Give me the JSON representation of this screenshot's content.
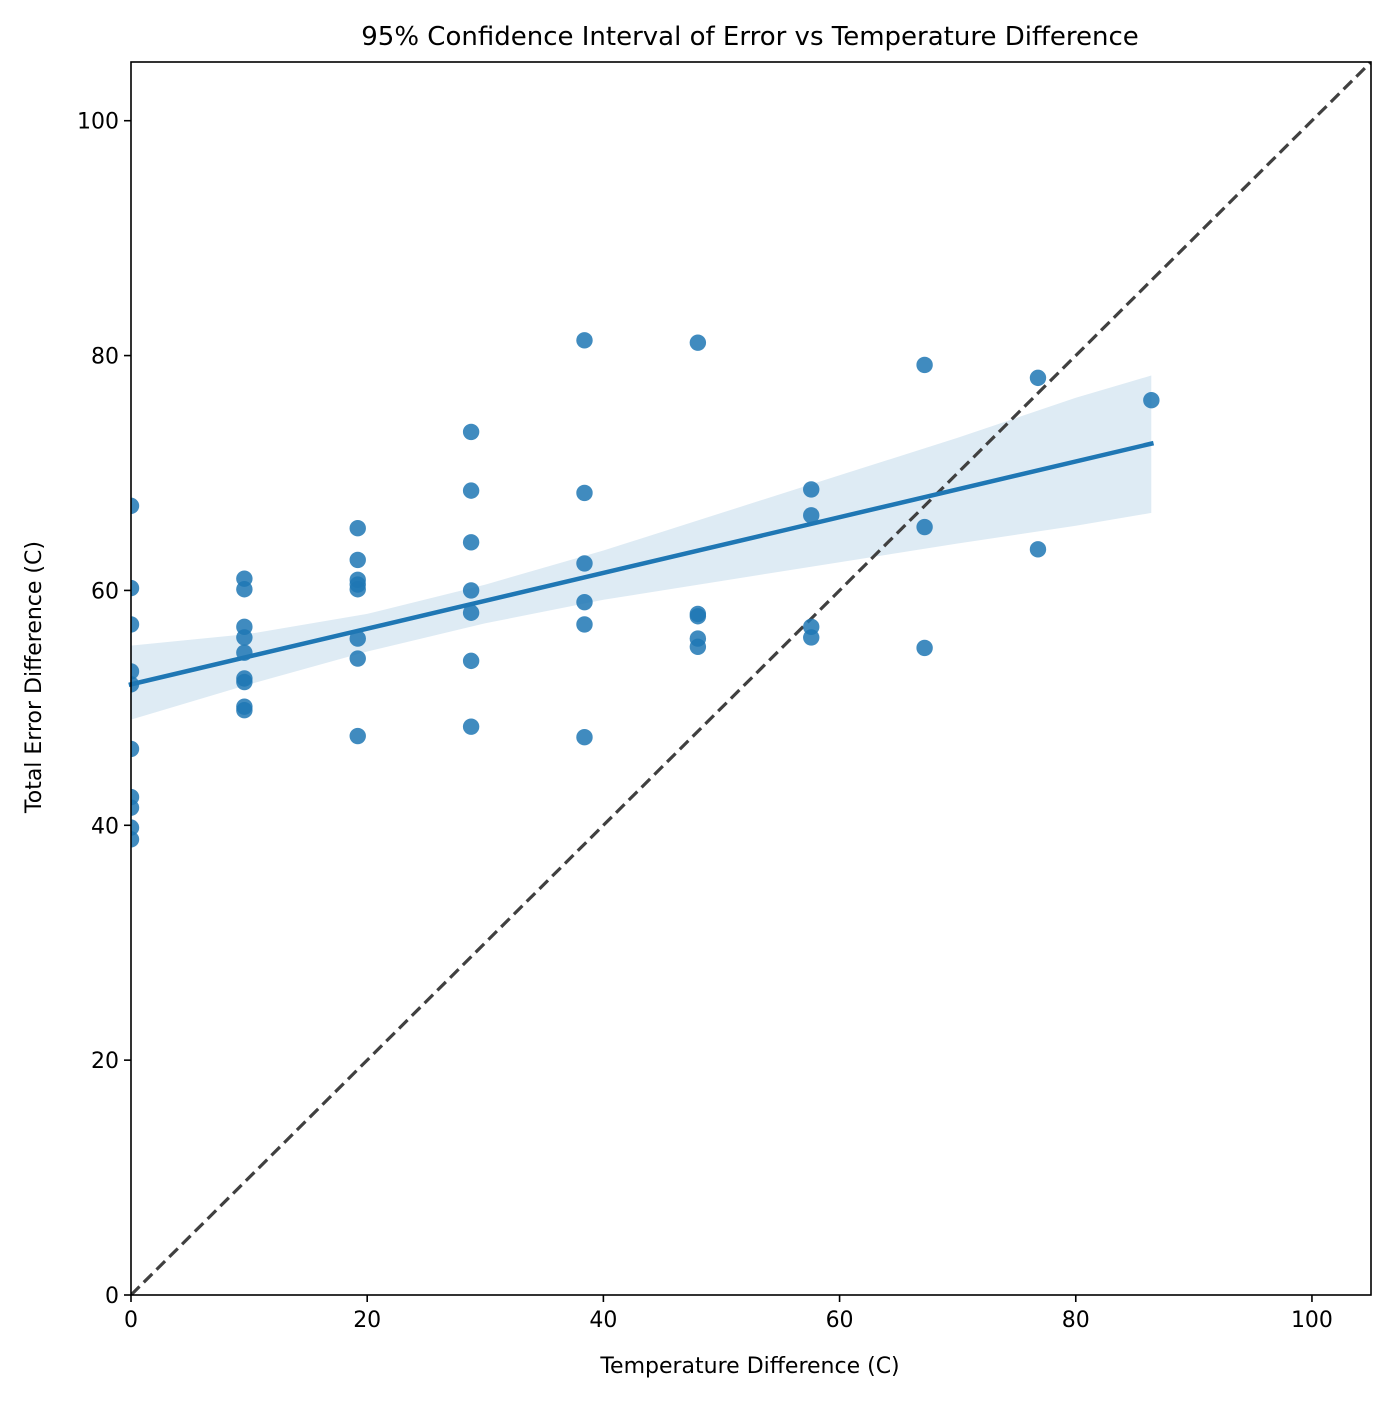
{
  "chart_data": {
    "type": "scatter",
    "title": "95% Confidence Interval of Error vs Temperature Difference",
    "xlabel": "Temperature Difference (C)",
    "ylabel": "Total Error Difference (C)",
    "xlim": [
      0,
      105
    ],
    "ylim": [
      0,
      105
    ],
    "xticks": [
      0,
      20,
      40,
      60,
      80,
      100
    ],
    "yticks": [
      0,
      20,
      40,
      60,
      80,
      100
    ],
    "grid": false,
    "legend": "none",
    "colors": {
      "points": "#1f77b4",
      "regression_line": "#1f77b4",
      "confidence_band": "#1f77b4",
      "identity_line": "#404040"
    },
    "points": [
      {
        "x": 0,
        "y": 67.2
      },
      {
        "x": 0,
        "y": 60.2
      },
      {
        "x": 0,
        "y": 57.1
      },
      {
        "x": 0,
        "y": 53.1
      },
      {
        "x": 0,
        "y": 52.0
      },
      {
        "x": 0,
        "y": 46.5
      },
      {
        "x": 0,
        "y": 42.4
      },
      {
        "x": 0,
        "y": 41.5
      },
      {
        "x": 0,
        "y": 39.8
      },
      {
        "x": 0,
        "y": 38.8
      },
      {
        "x": 9.6,
        "y": 61.0
      },
      {
        "x": 9.6,
        "y": 60.1
      },
      {
        "x": 9.6,
        "y": 56.9
      },
      {
        "x": 9.6,
        "y": 56.0
      },
      {
        "x": 9.6,
        "y": 54.7
      },
      {
        "x": 9.6,
        "y": 52.5
      },
      {
        "x": 9.6,
        "y": 52.2
      },
      {
        "x": 9.6,
        "y": 50.1
      },
      {
        "x": 9.6,
        "y": 49.8
      },
      {
        "x": 19.2,
        "y": 65.3
      },
      {
        "x": 19.2,
        "y": 62.6
      },
      {
        "x": 19.2,
        "y": 60.9
      },
      {
        "x": 19.2,
        "y": 60.5
      },
      {
        "x": 19.2,
        "y": 60.1
      },
      {
        "x": 19.2,
        "y": 55.9
      },
      {
        "x": 19.2,
        "y": 54.2
      },
      {
        "x": 19.2,
        "y": 47.6
      },
      {
        "x": 28.8,
        "y": 73.5
      },
      {
        "x": 28.8,
        "y": 68.5
      },
      {
        "x": 28.8,
        "y": 64.1
      },
      {
        "x": 28.8,
        "y": 60.0
      },
      {
        "x": 28.8,
        "y": 58.1
      },
      {
        "x": 28.8,
        "y": 54.0
      },
      {
        "x": 28.8,
        "y": 48.4
      },
      {
        "x": 38.4,
        "y": 81.3
      },
      {
        "x": 38.4,
        "y": 68.3
      },
      {
        "x": 38.4,
        "y": 62.3
      },
      {
        "x": 38.4,
        "y": 59.0
      },
      {
        "x": 38.4,
        "y": 57.1
      },
      {
        "x": 38.4,
        "y": 47.5
      },
      {
        "x": 48.0,
        "y": 81.1
      },
      {
        "x": 48.0,
        "y": 58.0
      },
      {
        "x": 48.0,
        "y": 57.8
      },
      {
        "x": 48.0,
        "y": 55.9
      },
      {
        "x": 48.0,
        "y": 55.2
      },
      {
        "x": 57.6,
        "y": 68.6
      },
      {
        "x": 57.6,
        "y": 66.4
      },
      {
        "x": 57.6,
        "y": 56.9
      },
      {
        "x": 57.6,
        "y": 56.0
      },
      {
        "x": 67.2,
        "y": 79.2
      },
      {
        "x": 67.2,
        "y": 65.4
      },
      {
        "x": 67.2,
        "y": 55.1
      },
      {
        "x": 76.8,
        "y": 78.1
      },
      {
        "x": 76.8,
        "y": 63.5
      },
      {
        "x": 86.4,
        "y": 76.2
      }
    ],
    "regression": {
      "x": [
        0,
        86.4
      ],
      "y": [
        52.0,
        72.5
      ]
    },
    "confidence_band": {
      "x": [
        0,
        10,
        20,
        30,
        40,
        50,
        60,
        70,
        80,
        86.4
      ],
      "lower": [
        49.0,
        52.0,
        54.8,
        57.2,
        59.2,
        60.8,
        62.4,
        64.0,
        65.5,
        66.6
      ],
      "upper": [
        55.3,
        56.3,
        58.0,
        60.5,
        63.4,
        66.6,
        69.8,
        73.0,
        76.4,
        78.3
      ]
    },
    "identity_line": {
      "x": [
        0,
        105
      ],
      "y": [
        0,
        105
      ]
    }
  }
}
